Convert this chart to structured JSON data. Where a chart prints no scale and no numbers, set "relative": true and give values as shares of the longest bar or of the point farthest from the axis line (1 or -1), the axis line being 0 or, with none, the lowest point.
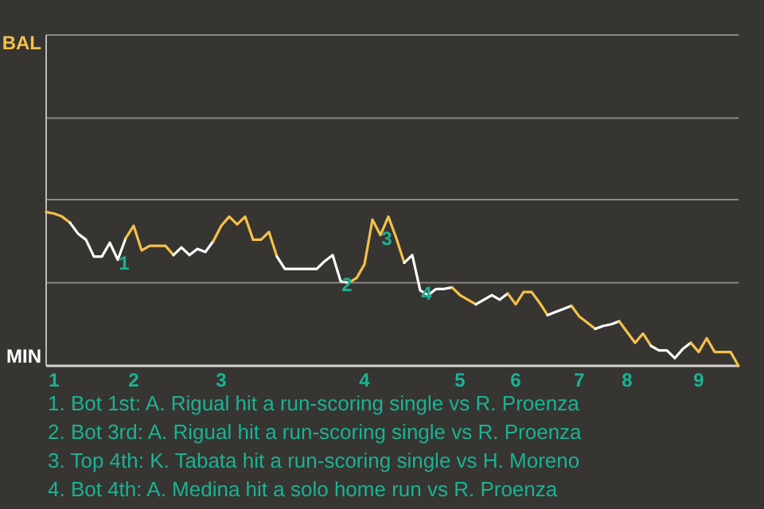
{
  "chart_data": {
    "type": "line",
    "relative": true,
    "categories": [
      null,
      "1",
      null,
      null,
      null,
      null,
      null,
      null,
      null,
      null,
      null,
      "2",
      null,
      null,
      null,
      null,
      null,
      null,
      null,
      null,
      null,
      null,
      "3",
      null,
      null,
      null,
      null,
      null,
      null,
      null,
      null,
      null,
      null,
      null,
      null,
      null,
      null,
      null,
      null,
      null,
      "4",
      null,
      null,
      null,
      null,
      null,
      null,
      null,
      null,
      null,
      null,
      null,
      "5",
      null,
      null,
      null,
      null,
      null,
      null,
      "6",
      null,
      null,
      null,
      null,
      null,
      null,
      null,
      "7",
      null,
      null,
      null,
      null,
      null,
      "8",
      null,
      null,
      null,
      null,
      null,
      null,
      null,
      null,
      "9",
      null,
      null,
      null,
      null,
      null
    ],
    "marker": "none",
    "line_style": "solid",
    "ref_lines": [
      {
        "axis": "y",
        "value": 0.54,
        "color": "#8a8885"
      },
      {
        "axis": "y",
        "value": 1.08,
        "color": "#8a8885"
      },
      {
        "axis": "y",
        "value": 1.61,
        "color": "#8a8885"
      },
      {
        "axis": "y",
        "value": 2.15,
        "color": "#8a8885"
      }
    ],
    "series": [
      {
        "color": "#f5c04a",
        "values": [
          1,
          0.99,
          0.97,
          0.93,
          null,
          null,
          null,
          null,
          null,
          null,
          null,
          null,
          null,
          null,
          null,
          null,
          null,
          null,
          null,
          null,
          null,
          null,
          null,
          null,
          null,
          null,
          null,
          null,
          null,
          null,
          null,
          null,
          null,
          null,
          null,
          null,
          null,
          null,
          null,
          null,
          null,
          null,
          null,
          null,
          null,
          null,
          null,
          null,
          null,
          null,
          null,
          null,
          null,
          null,
          null,
          null,
          null,
          null,
          null,
          null,
          null,
          null,
          null,
          null,
          null,
          null,
          null,
          null,
          null,
          null,
          null,
          null,
          null,
          null,
          null,
          null,
          null,
          null,
          null,
          null,
          null,
          null,
          null,
          null,
          null,
          null,
          null,
          null
        ]
      },
      {
        "color": "#ffffff",
        "values": [
          null,
          null,
          null,
          0.93,
          0.86,
          0.82,
          0.71,
          0.71,
          0.8,
          0.69,
          0.83,
          null,
          null,
          null,
          null,
          null,
          null,
          null,
          null,
          null,
          null,
          null,
          null,
          null,
          null,
          null,
          null,
          null,
          null,
          null,
          null,
          null,
          null,
          null,
          null,
          null,
          null,
          null,
          null,
          null,
          null,
          null,
          null,
          null,
          null,
          null,
          null,
          null,
          null,
          null,
          null,
          null,
          null,
          null,
          null,
          null,
          null,
          null,
          null,
          null,
          null,
          null,
          null,
          null,
          null,
          null,
          null,
          null,
          null,
          null,
          null,
          null,
          null,
          null,
          null,
          null,
          null,
          null,
          null,
          null,
          null,
          null,
          null,
          null,
          null,
          null,
          null,
          null
        ]
      },
      {
        "color": "#f5c04a",
        "values": [
          null,
          null,
          null,
          null,
          null,
          null,
          null,
          null,
          null,
          null,
          0.83,
          0.91,
          0.75,
          0.78,
          0.78,
          0.78,
          0.72,
          null,
          null,
          null,
          null,
          null,
          null,
          null,
          null,
          null,
          null,
          null,
          null,
          null,
          null,
          null,
          null,
          null,
          null,
          null,
          null,
          null,
          null,
          null,
          null,
          null,
          null,
          null,
          null,
          null,
          null,
          null,
          null,
          null,
          null,
          null,
          null,
          null,
          null,
          null,
          null,
          null,
          null,
          null,
          null,
          null,
          null,
          null,
          null,
          null,
          null,
          null,
          null,
          null,
          null,
          null,
          null,
          null,
          null,
          null,
          null,
          null,
          null,
          null,
          null,
          null,
          null,
          null,
          null,
          null,
          null,
          null
        ]
      },
      {
        "color": "#ffffff",
        "values": [
          null,
          null,
          null,
          null,
          null,
          null,
          null,
          null,
          null,
          null,
          null,
          null,
          null,
          null,
          null,
          null,
          0.72,
          0.77,
          0.72,
          0.76,
          0.74,
          0.81,
          null,
          null,
          null,
          null,
          null,
          null,
          null,
          null,
          null,
          null,
          null,
          null,
          null,
          null,
          null,
          null,
          null,
          null,
          null,
          null,
          null,
          null,
          null,
          null,
          null,
          null,
          null,
          null,
          null,
          null,
          null,
          null,
          null,
          null,
          null,
          null,
          null,
          null,
          null,
          null,
          null,
          null,
          null,
          null,
          null,
          null,
          null,
          null,
          null,
          null,
          null,
          null,
          null,
          null,
          null,
          null,
          null,
          null,
          null,
          null,
          null,
          null,
          null,
          null,
          null,
          null
        ]
      },
      {
        "color": "#f5c04a",
        "values": [
          null,
          null,
          null,
          null,
          null,
          null,
          null,
          null,
          null,
          null,
          null,
          null,
          null,
          null,
          null,
          null,
          null,
          null,
          null,
          null,
          null,
          0.81,
          0.91,
          0.97,
          0.92,
          0.97,
          0.82,
          0.82,
          0.87,
          0.71,
          null,
          null,
          null,
          null,
          null,
          null,
          null,
          null,
          null,
          null,
          null,
          null,
          null,
          null,
          null,
          null,
          null,
          null,
          null,
          null,
          null,
          null,
          null,
          null,
          null,
          null,
          null,
          null,
          null,
          null,
          null,
          null,
          null,
          null,
          null,
          null,
          null,
          null,
          null,
          null,
          null,
          null,
          null,
          null,
          null,
          null,
          null,
          null,
          null,
          null,
          null,
          null,
          null,
          null,
          null,
          null,
          null,
          null
        ]
      },
      {
        "color": "#ffffff",
        "values": [
          null,
          null,
          null,
          null,
          null,
          null,
          null,
          null,
          null,
          null,
          null,
          null,
          null,
          null,
          null,
          null,
          null,
          null,
          null,
          null,
          null,
          null,
          null,
          null,
          null,
          null,
          null,
          null,
          null,
          0.71,
          0.63,
          0.63,
          0.63,
          0.63,
          0.63,
          0.68,
          0.72,
          0.55,
          0.54,
          null,
          null,
          null,
          null,
          null,
          null,
          null,
          null,
          null,
          null,
          null,
          null,
          null,
          null,
          null,
          null,
          null,
          null,
          null,
          null,
          null,
          null,
          null,
          null,
          null,
          null,
          null,
          null,
          null,
          null,
          null,
          null,
          null,
          null,
          null,
          null,
          null,
          null,
          null,
          null,
          null,
          null,
          null,
          null,
          null,
          null,
          null,
          null,
          null
        ]
      },
      {
        "color": "#f5c04a",
        "values": [
          null,
          null,
          null,
          null,
          null,
          null,
          null,
          null,
          null,
          null,
          null,
          null,
          null,
          null,
          null,
          null,
          null,
          null,
          null,
          null,
          null,
          null,
          null,
          null,
          null,
          null,
          null,
          null,
          null,
          null,
          null,
          null,
          null,
          null,
          null,
          null,
          null,
          null,
          0.54,
          0.57,
          0.66,
          0.95,
          0.85,
          0.97,
          0.83,
          0.67,
          null,
          null,
          null,
          null,
          null,
          null,
          null,
          null,
          null,
          null,
          null,
          null,
          null,
          null,
          null,
          null,
          null,
          null,
          null,
          null,
          null,
          null,
          null,
          null,
          null,
          null,
          null,
          null,
          null,
          null,
          null,
          null,
          null,
          null,
          null,
          null,
          null,
          null,
          null,
          null,
          null,
          null
        ]
      },
      {
        "color": "#ffffff",
        "values": [
          null,
          null,
          null,
          null,
          null,
          null,
          null,
          null,
          null,
          null,
          null,
          null,
          null,
          null,
          null,
          null,
          null,
          null,
          null,
          null,
          null,
          null,
          null,
          null,
          null,
          null,
          null,
          null,
          null,
          null,
          null,
          null,
          null,
          null,
          null,
          null,
          null,
          null,
          null,
          null,
          null,
          null,
          null,
          null,
          null,
          0.67,
          0.72,
          0.49,
          0.46,
          0.5,
          0.5,
          0.51,
          null,
          null,
          null,
          null,
          null,
          null,
          null,
          null,
          null,
          null,
          null,
          null,
          null,
          null,
          null,
          null,
          null,
          null,
          null,
          null,
          null,
          null,
          null,
          null,
          null,
          null,
          null,
          null,
          null,
          null,
          null,
          null,
          null,
          null,
          null,
          null
        ]
      },
      {
        "color": "#f5c04a",
        "values": [
          null,
          null,
          null,
          null,
          null,
          null,
          null,
          null,
          null,
          null,
          null,
          null,
          null,
          null,
          null,
          null,
          null,
          null,
          null,
          null,
          null,
          null,
          null,
          null,
          null,
          null,
          null,
          null,
          null,
          null,
          null,
          null,
          null,
          null,
          null,
          null,
          null,
          null,
          null,
          null,
          null,
          null,
          null,
          null,
          null,
          null,
          null,
          null,
          null,
          null,
          null,
          0.51,
          0.46,
          0.43,
          0.4,
          null,
          null,
          null,
          null,
          null,
          null,
          null,
          null,
          null,
          null,
          null,
          null,
          null,
          null,
          null,
          null,
          null,
          null,
          null,
          null,
          null,
          null,
          null,
          null,
          null,
          null,
          null,
          null,
          null,
          null,
          null,
          null,
          null
        ]
      },
      {
        "color": "#ffffff",
        "values": [
          null,
          null,
          null,
          null,
          null,
          null,
          null,
          null,
          null,
          null,
          null,
          null,
          null,
          null,
          null,
          null,
          null,
          null,
          null,
          null,
          null,
          null,
          null,
          null,
          null,
          null,
          null,
          null,
          null,
          null,
          null,
          null,
          null,
          null,
          null,
          null,
          null,
          null,
          null,
          null,
          null,
          null,
          null,
          null,
          null,
          null,
          null,
          null,
          null,
          null,
          null,
          null,
          null,
          null,
          0.4,
          0.43,
          0.46,
          0.43,
          0.47,
          null,
          null,
          null,
          null,
          null,
          null,
          null,
          null,
          null,
          null,
          null,
          null,
          null,
          null,
          null,
          null,
          null,
          null,
          null,
          null,
          null,
          null,
          null,
          null,
          null,
          null,
          null,
          null,
          null
        ]
      },
      {
        "color": "#f5c04a",
        "values": [
          null,
          null,
          null,
          null,
          null,
          null,
          null,
          null,
          null,
          null,
          null,
          null,
          null,
          null,
          null,
          null,
          null,
          null,
          null,
          null,
          null,
          null,
          null,
          null,
          null,
          null,
          null,
          null,
          null,
          null,
          null,
          null,
          null,
          null,
          null,
          null,
          null,
          null,
          null,
          null,
          null,
          null,
          null,
          null,
          null,
          null,
          null,
          null,
          null,
          null,
          null,
          null,
          null,
          null,
          null,
          null,
          null,
          null,
          0.47,
          0.4,
          0.48,
          0.48,
          0.41,
          0.33,
          null,
          null,
          null,
          null,
          null,
          null,
          null,
          null,
          null,
          null,
          null,
          null,
          null,
          null,
          null,
          null,
          null,
          null,
          null,
          null,
          null,
          null,
          null,
          null
        ]
      },
      {
        "color": "#ffffff",
        "values": [
          null,
          null,
          null,
          null,
          null,
          null,
          null,
          null,
          null,
          null,
          null,
          null,
          null,
          null,
          null,
          null,
          null,
          null,
          null,
          null,
          null,
          null,
          null,
          null,
          null,
          null,
          null,
          null,
          null,
          null,
          null,
          null,
          null,
          null,
          null,
          null,
          null,
          null,
          null,
          null,
          null,
          null,
          null,
          null,
          null,
          null,
          null,
          null,
          null,
          null,
          null,
          null,
          null,
          null,
          null,
          null,
          null,
          null,
          null,
          null,
          null,
          null,
          null,
          0.33,
          0.35,
          0.37,
          0.39,
          null,
          null,
          null,
          null,
          null,
          null,
          null,
          null,
          null,
          null,
          null,
          null,
          null,
          null,
          null,
          null,
          null,
          null,
          null,
          null,
          null
        ]
      },
      {
        "color": "#f5c04a",
        "values": [
          null,
          null,
          null,
          null,
          null,
          null,
          null,
          null,
          null,
          null,
          null,
          null,
          null,
          null,
          null,
          null,
          null,
          null,
          null,
          null,
          null,
          null,
          null,
          null,
          null,
          null,
          null,
          null,
          null,
          null,
          null,
          null,
          null,
          null,
          null,
          null,
          null,
          null,
          null,
          null,
          null,
          null,
          null,
          null,
          null,
          null,
          null,
          null,
          null,
          null,
          null,
          null,
          null,
          null,
          null,
          null,
          null,
          null,
          null,
          null,
          null,
          null,
          null,
          null,
          null,
          null,
          0.39,
          0.32,
          0.28,
          0.24,
          null,
          null,
          null,
          null,
          null,
          null,
          null,
          null,
          null,
          null,
          null,
          null,
          null,
          null,
          null,
          null,
          null,
          null
        ]
      },
      {
        "color": "#ffffff",
        "values": [
          null,
          null,
          null,
          null,
          null,
          null,
          null,
          null,
          null,
          null,
          null,
          null,
          null,
          null,
          null,
          null,
          null,
          null,
          null,
          null,
          null,
          null,
          null,
          null,
          null,
          null,
          null,
          null,
          null,
          null,
          null,
          null,
          null,
          null,
          null,
          null,
          null,
          null,
          null,
          null,
          null,
          null,
          null,
          null,
          null,
          null,
          null,
          null,
          null,
          null,
          null,
          null,
          null,
          null,
          null,
          null,
          null,
          null,
          null,
          null,
          null,
          null,
          null,
          null,
          null,
          null,
          null,
          null,
          null,
          0.24,
          0.26,
          0.27,
          0.29,
          null,
          null,
          null,
          null,
          null,
          null,
          null,
          null,
          null,
          null,
          null,
          null,
          null,
          null,
          null
        ]
      },
      {
        "color": "#f5c04a",
        "values": [
          null,
          null,
          null,
          null,
          null,
          null,
          null,
          null,
          null,
          null,
          null,
          null,
          null,
          null,
          null,
          null,
          null,
          null,
          null,
          null,
          null,
          null,
          null,
          null,
          null,
          null,
          null,
          null,
          null,
          null,
          null,
          null,
          null,
          null,
          null,
          null,
          null,
          null,
          null,
          null,
          null,
          null,
          null,
          null,
          null,
          null,
          null,
          null,
          null,
          null,
          null,
          null,
          null,
          null,
          null,
          null,
          null,
          null,
          null,
          null,
          null,
          null,
          null,
          null,
          null,
          null,
          null,
          null,
          null,
          null,
          null,
          null,
          0.29,
          0.22,
          0.15,
          0.21,
          0.13,
          null,
          null,
          null,
          null,
          null,
          null,
          null,
          null,
          null,
          null,
          null
        ]
      },
      {
        "color": "#ffffff",
        "values": [
          null,
          null,
          null,
          null,
          null,
          null,
          null,
          null,
          null,
          null,
          null,
          null,
          null,
          null,
          null,
          null,
          null,
          null,
          null,
          null,
          null,
          null,
          null,
          null,
          null,
          null,
          null,
          null,
          null,
          null,
          null,
          null,
          null,
          null,
          null,
          null,
          null,
          null,
          null,
          null,
          null,
          null,
          null,
          null,
          null,
          null,
          null,
          null,
          null,
          null,
          null,
          null,
          null,
          null,
          null,
          null,
          null,
          null,
          null,
          null,
          null,
          null,
          null,
          null,
          null,
          null,
          null,
          null,
          null,
          null,
          null,
          null,
          null,
          null,
          null,
          null,
          0.13,
          0.1,
          0.1,
          0.05,
          0.11,
          0.15,
          null,
          null,
          null,
          null,
          null,
          null
        ]
      },
      {
        "color": "#f5c04a",
        "values": [
          null,
          null,
          null,
          null,
          null,
          null,
          null,
          null,
          null,
          null,
          null,
          null,
          null,
          null,
          null,
          null,
          null,
          null,
          null,
          null,
          null,
          null,
          null,
          null,
          null,
          null,
          null,
          null,
          null,
          null,
          null,
          null,
          null,
          null,
          null,
          null,
          null,
          null,
          null,
          null,
          null,
          null,
          null,
          null,
          null,
          null,
          null,
          null,
          null,
          null,
          null,
          null,
          null,
          null,
          null,
          null,
          null,
          null,
          null,
          null,
          null,
          null,
          null,
          null,
          null,
          null,
          null,
          null,
          null,
          null,
          null,
          null,
          null,
          null,
          null,
          null,
          null,
          null,
          null,
          null,
          null,
          0.15,
          0.09,
          0.18,
          0.09,
          0.09,
          0.09,
          0
        ]
      }
    ],
    "annotations": [
      "BAL",
      "MIN",
      {
        "text": "1",
        "y": 0.69
      },
      {
        "text": "2",
        "y": 0.55
      },
      {
        "text": "3",
        "y": 0.85
      },
      {
        "text": "4",
        "y": 0.49
      },
      "1. Bot 1st: A. Rigual hit a run-scoring single vs R. Proenza",
      "2. Bot 3rd: A. Rigual hit a run-scoring single vs R. Proenza",
      "3. Top 4th: K. Tabata hit a run-scoring single vs H. Moreno",
      "4. Bot 4th: A. Medina hit a solo home run vs R. Proenza"
    ]
  }
}
